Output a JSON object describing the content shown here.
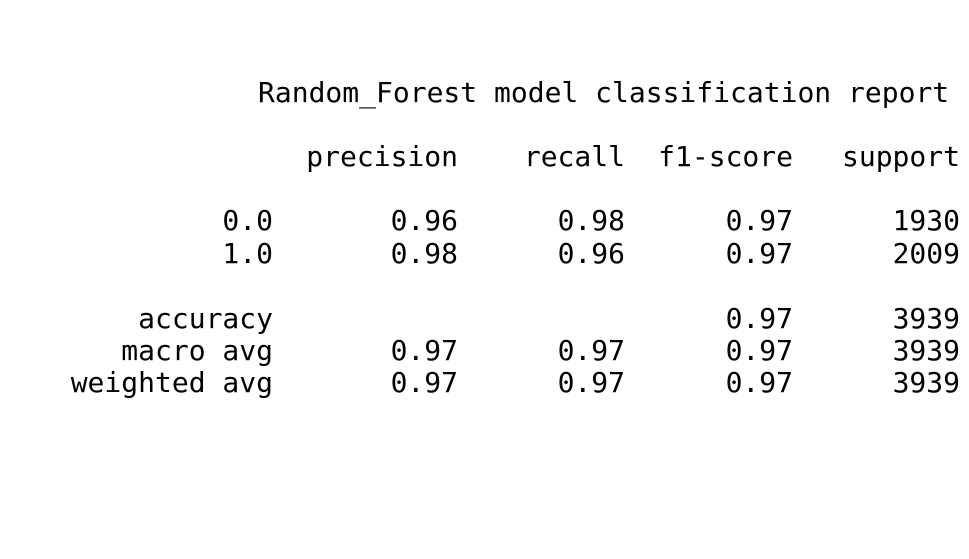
{
  "report": {
    "title": "Random_Forest model classification report",
    "headers": {
      "precision": "precision",
      "recall": "recall",
      "f1": "f1-score",
      "support": "support"
    },
    "classes": [
      {
        "label": "0.0",
        "precision": "0.96",
        "recall": "0.98",
        "f1": "0.97",
        "support": "1930"
      },
      {
        "label": "1.0",
        "precision": "0.98",
        "recall": "0.96",
        "f1": "0.97",
        "support": "2009"
      }
    ],
    "accuracy": {
      "label": "accuracy",
      "f1": "0.97",
      "support": "3939"
    },
    "macro_avg": {
      "label": "macro avg",
      "precision": "0.97",
      "recall": "0.97",
      "f1": "0.97",
      "support": "3939"
    },
    "weighted_avg": {
      "label": "weighted avg",
      "precision": "0.97",
      "recall": "0.97",
      "f1": "0.97",
      "support": "3939"
    }
  }
}
